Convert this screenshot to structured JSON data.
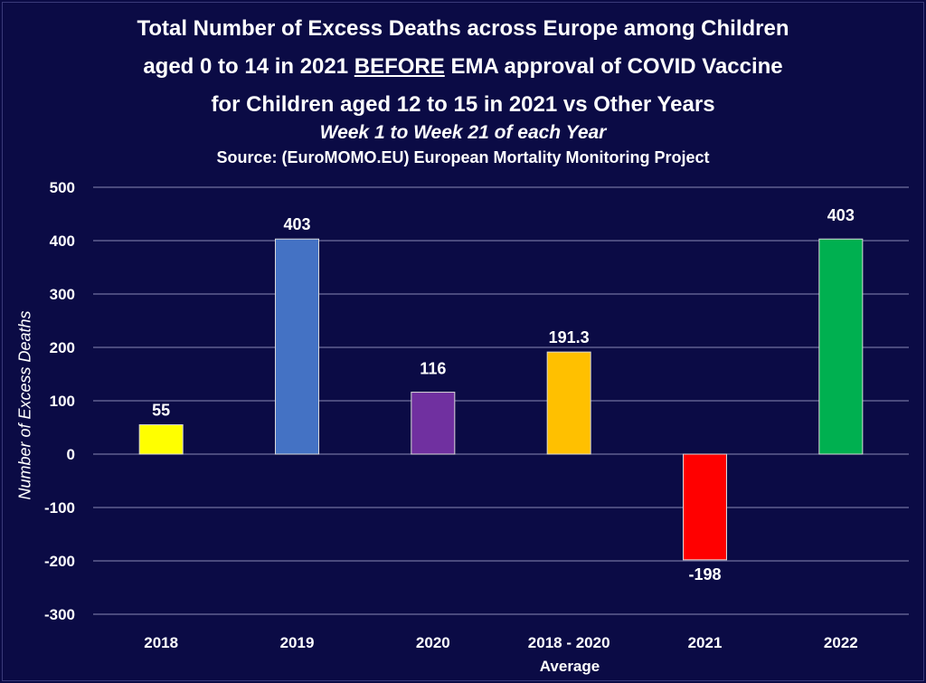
{
  "chart_data": {
    "type": "bar",
    "title_parts": [
      "Total Number of Excess Deaths across Europe among Children",
      "aged 0 to 14 in 2021 ",
      "BEFORE",
      " EMA approval of COVID Vaccine",
      "for Children aged 12 to 15 in 2021 vs Other Years"
    ],
    "subtitle": "Week 1 to Week 21 of each Year",
    "source": "Source: (EuroMOMO.EU) European Mortality Monitoring Project",
    "ylabel": "Number of Excess Deaths",
    "xlabel": "",
    "categories": [
      "2018",
      "2019",
      "2020",
      "2018 - 2020",
      "2021",
      "2022"
    ],
    "category_note": "Average",
    "values": [
      55,
      403,
      116,
      191.3,
      -198,
      403
    ],
    "data_labels": [
      "55",
      "403",
      "116",
      "191.3",
      "-198",
      "403"
    ],
    "bar_colors": [
      "#ffff00",
      "#4472c4",
      "#7030a0",
      "#ffc000",
      "#ff0000",
      "#00b050"
    ],
    "ylim": [
      -300,
      500
    ],
    "yticks": [
      500,
      400,
      300,
      200,
      100,
      0,
      -100,
      -200,
      -300
    ],
    "grid": true,
    "legend": "none"
  }
}
